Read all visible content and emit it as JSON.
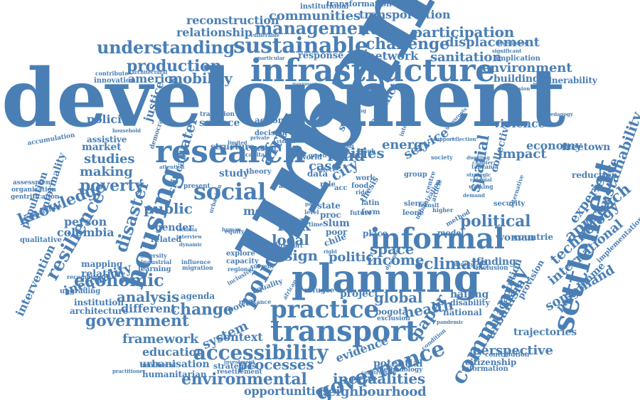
{
  "theme": {
    "word_color": "#4a7fb5",
    "background": "#ffffff"
  },
  "words": [
    "development",
    "urban",
    "planning",
    "infrastructure",
    "research",
    "housing",
    "informal",
    "settlement",
    "transport",
    "practice",
    "community",
    "social",
    "governance",
    "policy",
    "sustainable",
    "management",
    "understanding",
    "accessibility",
    "knowledge",
    "disaster",
    "poverty",
    "political",
    "government",
    "environmental",
    "cities",
    "production",
    "mobility",
    "challenge",
    "displacement",
    "participation",
    "communities",
    "transportation",
    "reconstruction",
    "relationship",
    "sanitation",
    "environment",
    "building",
    "vulnerability",
    "network",
    "response",
    "america",
    "innovation",
    "architectural",
    "contribute",
    "implication",
    "significant",
    "livelihood",
    "institutional",
    "transformation",
    "vulnerable",
    "particular",
    "dimension",
    "movement",
    "policies",
    "justice",
    "resilience",
    "economic",
    "analysis",
    "change",
    "inequality",
    "different",
    "architecture",
    "intervention",
    "population",
    "informality",
    "assessment",
    "organisation",
    "gentrification",
    "accumulation",
    "studies",
    "making",
    "market",
    "assistive",
    "household",
    "public",
    "person",
    "colombia",
    "qualitative",
    "neoliberalism",
    "relation",
    "mapping",
    "upgrading",
    "recognition",
    "institution",
    "gender",
    "related",
    "learning",
    "industrial",
    "diversity",
    "education",
    "framework",
    "urbanisation",
    "humanitarian",
    "practitioner",
    "neoliberal",
    "system",
    "agenda",
    "context",
    "strategies",
    "resettlement",
    "processes",
    "opportunities",
    "inequalities",
    "neighbourhood",
    "evidence",
    "potential",
    "methodology",
    "construction",
    "citizenship",
    "information",
    "contribution",
    "trajectories",
    "perspective",
    "urbanism",
    "global",
    "health",
    "paper",
    "refugee",
    "project",
    "bogotá",
    "exclusion",
    "national",
    "disability",
    "hailing",
    "somaliland",
    "programme",
    "implementation",
    "provision",
    "adaptation",
    "international",
    "technology",
    "approach",
    "experience",
    "sustainability",
    "reduction",
    "freetown",
    "economy",
    "service",
    "impact",
    "energy",
    "conflict",
    "violence",
    "spatial",
    "collective",
    "africa",
    "space",
    "income",
    "climate",
    "finding",
    "inclusion",
    "woman",
    "countrie",
    "security",
    "model",
    "method",
    "design",
    "local",
    "risk",
    "politic",
    "place",
    "land",
    "case",
    "city",
    "study",
    "theory",
    "concept",
    "science",
    "water",
    "critical",
    "structure",
    "decision",
    "action",
    "transition",
    "democracy",
    "integration",
    "important",
    "flooding",
    "pedagogy",
    "tanzania",
    "dwelling",
    "strategic",
    "chapter",
    "colonial",
    "walking",
    "demand",
    "alternative",
    "higher",
    "leone",
    "sierra",
    "thesis",
    "centre",
    "article",
    "urbanization",
    "sub",
    "saharan",
    "living",
    "green",
    "world",
    "food",
    "work",
    "group",
    "ride",
    "latin",
    "form",
    "proc",
    "state",
    "slum",
    "poor",
    "chile",
    "right",
    "tenure",
    "report",
    "explore",
    "capacity",
    "regional",
    "current",
    "influence",
    "migration",
    "interview",
    "dynamic",
    "equity",
    "more",
    "level",
    "time",
    "future",
    "transit",
    "society",
    "resistance",
    "power",
    "equality",
    "investment",
    "inclusive",
    "african",
    "attention",
    "capital",
    "limited",
    "private",
    "medellín",
    "present",
    "human",
    "role",
    "data",
    "effect",
    "acc",
    "area",
    "para",
    "support",
    "reflection",
    "grassroots",
    "violent",
    "identity",
    "dynamics",
    "urbanism",
    "pandemic",
    "condition",
    "victoria"
  ]
}
